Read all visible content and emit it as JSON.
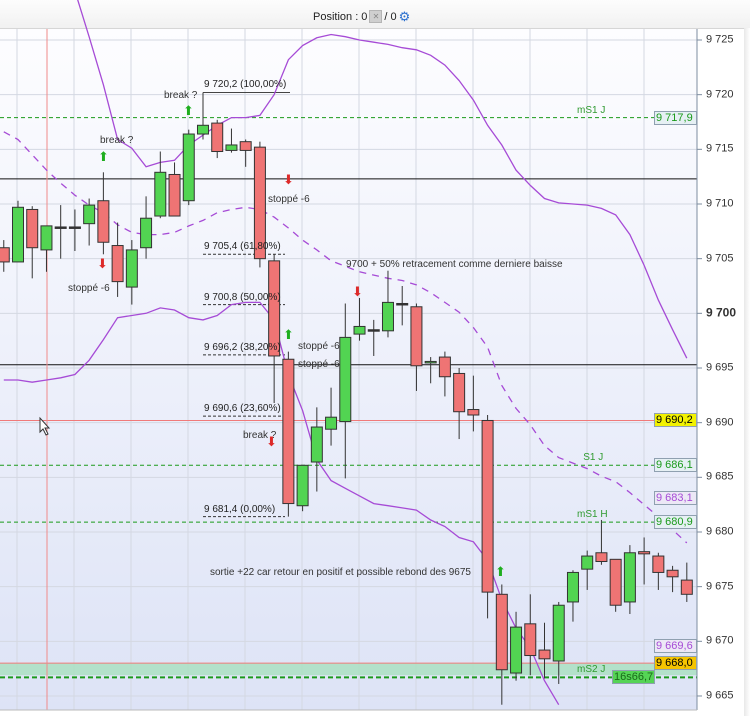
{
  "header": {
    "position_label": "Position : 0",
    "position_sep": " / 0",
    "icons": [
      "position-icon",
      "gear-icon"
    ]
  },
  "colors": {
    "up": "#52d452",
    "down": "#ef7474",
    "band": "#a64bd6",
    "level": "#1a9a1a",
    "support_red": "#f07a7a",
    "zone": "#aee0c4"
  },
  "chart_data": {
    "type": "candlestick",
    "ylim": [
      9664,
      9727
    ],
    "y_ticks": [
      "9 725",
      "9 720",
      "9 715",
      "9 710",
      "9 705",
      "9 700",
      "9 695",
      "9 690",
      "9 685",
      "9 680",
      "9 675",
      "9 670",
      "9 665"
    ],
    "y_tick_values": [
      9725,
      9720,
      9715,
      9710,
      9705,
      9700,
      9695,
      9690,
      9685,
      9680,
      9675,
      9670,
      9665
    ],
    "grid": true,
    "candles": [
      [
        9706.0,
        9706.7,
        9703.8,
        9704.7
      ],
      [
        9704.7,
        9710.3,
        9704.7,
        9709.7
      ],
      [
        9709.5,
        9709.8,
        9703.2,
        9706.0
      ],
      [
        9705.8,
        9708.0,
        9703.8,
        9708.0
      ],
      [
        9707.9,
        9709.9,
        9705.0,
        9707.9
      ],
      [
        9707.9,
        9709.5,
        9705.7,
        9707.9
      ],
      [
        9708.2,
        9710.5,
        9706.2,
        9709.9
      ],
      [
        9710.3,
        9712.9,
        9705.4,
        9706.5
      ],
      [
        9706.2,
        9708.3,
        9701.5,
        9702.9
      ],
      [
        9702.4,
        9706.7,
        9700.8,
        9705.8
      ],
      [
        9706.0,
        9710.7,
        9705.0,
        9708.7
      ],
      [
        9708.9,
        9714.8,
        9708.7,
        9712.9
      ],
      [
        9712.7,
        9713.8,
        9708.9,
        9708.9
      ],
      [
        9710.3,
        9716.8,
        9709.9,
        9716.4
      ],
      [
        9716.4,
        9720.2,
        9715.9,
        9717.2
      ],
      [
        9717.4,
        9717.7,
        9714.2,
        9714.8
      ],
      [
        9714.9,
        9716.9,
        9714.7,
        9715.4
      ],
      [
        9715.7,
        9715.9,
        9713.4,
        9714.9
      ],
      [
        9715.2,
        9715.7,
        9704.2,
        9705.0
      ],
      [
        9704.8,
        9705.4,
        9691.8,
        9696.1
      ],
      [
        9695.8,
        9696.5,
        9681.4,
        9682.6
      ],
      [
        9682.4,
        9686.1,
        9681.9,
        9686.1
      ],
      [
        9686.4,
        9691.4,
        9683.7,
        9689.6
      ],
      [
        9689.4,
        9693.2,
        9687.9,
        9690.5
      ],
      [
        9690.1,
        9700.9,
        9684.9,
        9697.8
      ],
      [
        9698.1,
        9701.4,
        9697.5,
        9698.8
      ],
      [
        9698.5,
        9699.4,
        9696.1,
        9698.5
      ],
      [
        9698.4,
        9703.9,
        9697.8,
        9701.0
      ],
      [
        9700.9,
        9702.5,
        9698.9,
        9700.9
      ],
      [
        9700.6,
        9700.9,
        9692.9,
        9695.2
      ],
      [
        9695.5,
        9696.0,
        9693.6,
        9695.6
      ],
      [
        9696.0,
        9696.5,
        9692.4,
        9694.2
      ],
      [
        9694.5,
        9695.0,
        9688.5,
        9691.0
      ],
      [
        9691.2,
        9694.3,
        9689.2,
        9690.7
      ],
      [
        9690.2,
        9690.7,
        9672.1,
        9674.5
      ],
      [
        9674.3,
        9675.2,
        9664.2,
        9667.4
      ],
      [
        9667.1,
        9672.7,
        9666.4,
        9671.3
      ],
      [
        9671.6,
        9674.3,
        9666.9,
        9668.7
      ],
      [
        9669.2,
        9671.7,
        9666.6,
        9668.4
      ],
      [
        9668.2,
        9673.6,
        9666.1,
        9673.3
      ],
      [
        9673.6,
        9676.5,
        9671.8,
        9676.3
      ],
      [
        9676.6,
        9678.3,
        9674.7,
        9677.8
      ],
      [
        9678.1,
        9681.1,
        9677.0,
        9677.3
      ],
      [
        9677.5,
        9677.5,
        9672.7,
        9673.3
      ],
      [
        9673.6,
        9678.8,
        9672.5,
        9678.1
      ],
      [
        9678.2,
        9679.5,
        9675.2,
        9678.0
      ],
      [
        9677.8,
        9678.1,
        9674.7,
        9676.3
      ],
      [
        9676.5,
        9676.9,
        9674.5,
        9675.9
      ],
      [
        9675.6,
        9677.2,
        9673.6,
        9674.3
      ]
    ],
    "candle_fields": [
      "open",
      "high",
      "low",
      "close"
    ],
    "bands": {
      "upper": [
        null,
        null,
        null,
        null,
        null,
        9729.5,
        9725.3,
        9720.9,
        9715.9,
        9715.1,
        9713.4,
        9713.8,
        9714.0,
        9715.4,
        9716.3,
        9717.2,
        9717.9,
        9717.9,
        9718.1,
        9720.0,
        9723.2,
        9724.5,
        9725.2,
        9725.5,
        9725.3,
        9725.0,
        9724.8,
        9724.6,
        9724.3,
        9724.1,
        9723.6,
        9722.7,
        9721.3,
        9719.5,
        9717.2,
        9715.4,
        9713.1,
        9711.7,
        9710.5,
        9710.1,
        9710.0,
        9709.9,
        9709.6,
        9709.0,
        9707.2,
        9704.4,
        9701.2,
        9698.5,
        9695.9
      ],
      "middle": [
        9716.6,
        9715.9,
        9714.5,
        9713.1,
        9711.9,
        9710.8,
        9709.9,
        9709.2,
        9708.1,
        9707.4,
        9707.2,
        9707.2,
        9707.4,
        9708.0,
        9708.5,
        9709.2,
        9709.5,
        9709.7,
        9709.5,
        9708.8,
        9707.8,
        9706.7,
        9705.8,
        9704.8,
        9704.3,
        9703.8,
        9703.5,
        9703.2,
        9703.0,
        9702.6,
        9701.9,
        9701.0,
        9700.1,
        9698.7,
        9696.9,
        9693.4,
        9691.3,
        9689.8,
        9687.9,
        9686.8,
        9686.3,
        9685.8,
        9685.1,
        9684.6,
        9683.6,
        9682.5,
        9681.4,
        9680.2,
        9679.0
      ],
      "lower": [
        9693.9,
        9693.9,
        9693.7,
        9693.9,
        9694.1,
        9694.4,
        9695.7,
        9697.6,
        9699.6,
        9699.8,
        9700.0,
        9700.5,
        9700.3,
        9699.6,
        9699.4,
        9699.8,
        9700.8,
        9701.0,
        9701.0,
        9699.4,
        9694.4,
        9691.1,
        9686.6,
        9684.7,
        9684.0,
        9683.3,
        9682.6,
        9682.4,
        9682.2,
        9682.0,
        9681.1,
        9680.5,
        9679.5,
        9679.1,
        9677.4,
        9673.8,
        9671.2,
        9669.4,
        9666.4,
        9664.2,
        null,
        null,
        null,
        null,
        null,
        null,
        null,
        null,
        null
      ]
    },
    "horizontal_lines": [
      {
        "price": 9717.9,
        "style": "green-dashed",
        "label": "mS1 J"
      },
      {
        "price": 9712.3,
        "style": "black"
      },
      {
        "price": 9695.3,
        "style": "black"
      },
      {
        "price": 9690.2,
        "style": "red"
      },
      {
        "price": 9686.1,
        "style": "green-dashed",
        "label": "S1 J"
      },
      {
        "price": 9680.9,
        "style": "green-dashed",
        "label": "mS1 H"
      },
      {
        "price": 9668.0,
        "style": "red"
      },
      {
        "price": 9666.7,
        "style": "green-dashed-bold",
        "label": "mS2 J"
      }
    ],
    "zone": [
      9666.9,
      9668.0
    ],
    "price_tags": [
      {
        "text": "9 717,9",
        "price": 9717.9,
        "color": "#1a9a1a",
        "bg": "#e6f0f4"
      },
      {
        "text": "9 690,2",
        "price": 9690.2,
        "color": "#000000",
        "bg": "#f2f200"
      },
      {
        "text": "9 686,1",
        "price": 9686.1,
        "color": "#1a9a1a",
        "bg": "#e6f0f4"
      },
      {
        "text": "9 683,1",
        "price": 9683.1,
        "color": "#a64bd6",
        "bg": "#ece8f6"
      },
      {
        "text": "9 680,9",
        "price": 9680.9,
        "color": "#1a9a1a",
        "bg": "#e6f0f4"
      },
      {
        "text": "9 669,6",
        "price": 9669.6,
        "color": "#a64bd6",
        "bg": "#ece8f6"
      },
      {
        "text": "9 668,0",
        "price": 9668.0,
        "color": "#000000",
        "bg": "#f5c400"
      },
      {
        "text": "16s66,7",
        "price": 9666.7,
        "color": "#1a6a1a",
        "bg": "#55d455"
      }
    ],
    "fibonacci": [
      {
        "label": "9 720,2 (100,00%)",
        "price": 9720.2
      },
      {
        "label": "9 705,4 (61,80%)",
        "price": 9705.4
      },
      {
        "label": "9 700,8 (50,00%)",
        "price": 9700.8
      },
      {
        "label": "9 696,2 (38,20%)",
        "price": 9696.2
      },
      {
        "label": "9 690,6 (23,60%)",
        "price": 9690.6
      },
      {
        "label": "9 681,4 (0,00%)",
        "price": 9681.4
      }
    ],
    "annotations": [
      {
        "text": "break ?",
        "bar": 6,
        "price": 9715.5,
        "arrow": "up"
      },
      {
        "text": "break ?",
        "bar": 12,
        "price": 9720.5,
        "arrow": "up"
      },
      {
        "text": "stoppé -6",
        "bar": 6,
        "price": 9703.0,
        "arrow": "down"
      },
      {
        "text": "stoppé -6",
        "bar": 19,
        "price": 9709.6,
        "arrow": "down"
      },
      {
        "text": "stoppé -6",
        "bar": 19,
        "price": 9697.0,
        "arrow": "up"
      },
      {
        "text": "stoppé -6",
        "bar": 21,
        "price": 9695.6,
        "arrow": "none"
      },
      {
        "text": "break ?",
        "bar": 18,
        "price": 9688.0,
        "arrow": "down"
      },
      {
        "text": "9700 + 50% retracement comme derniere baisse",
        "bar": 25,
        "price": 9704.2,
        "arrow": "down"
      },
      {
        "text": "sortie +22 car retour en positif et possible rebond des 9675",
        "bar": 35,
        "price": 9675.2,
        "arrow": "up"
      }
    ]
  }
}
